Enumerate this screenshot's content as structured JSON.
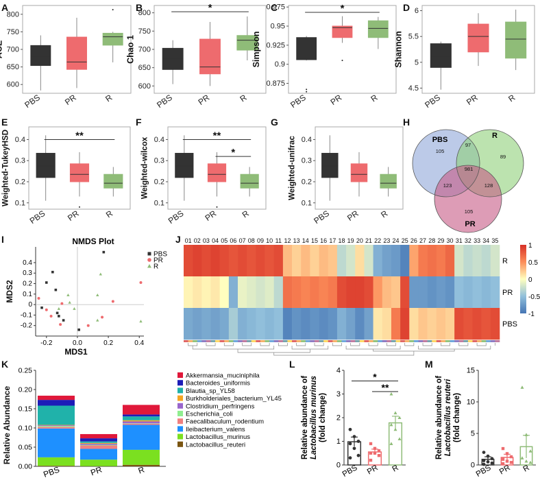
{
  "colors": {
    "pbs": "#333333",
    "pr": "#ee6b6e",
    "r": "#8fbc78",
    "axis": "#444444",
    "venn_pbs": "#8fa6d8",
    "venn_r": "#8fd07a",
    "venn_pr": "#c75a86"
  },
  "groups": [
    "PBS",
    "PR",
    "R"
  ],
  "chart_data": [
    {
      "panel": "A",
      "type": "box",
      "ylabel": "ACE",
      "ylim": [
        575,
        825
      ],
      "ticks": [
        600,
        650,
        700,
        750,
        800
      ],
      "categories": [
        "PBS",
        "PR",
        "R"
      ],
      "boxes": [
        {
          "min": 583,
          "q1": 654,
          "median": 681,
          "q3": 711,
          "max": 740
        },
        {
          "min": 590,
          "q1": 643,
          "median": 664,
          "q3": 735,
          "max": 790
        },
        {
          "min": 663,
          "q1": 712,
          "median": 736,
          "q3": 746,
          "max": 750
        }
      ],
      "outliers": [
        {
          "group": 2,
          "value": 813
        }
      ],
      "significance": []
    },
    {
      "panel": "B",
      "type": "box",
      "ylabel": "Chao 1",
      "ylim": [
        580,
        820
      ],
      "ticks": [
        600,
        650,
        700,
        750,
        800
      ],
      "categories": [
        "PBS",
        "PR",
        "R"
      ],
      "boxes": [
        {
          "min": 605,
          "q1": 645,
          "median": 675,
          "q3": 703,
          "max": 725
        },
        {
          "min": 600,
          "q1": 633,
          "median": 652,
          "q3": 728,
          "max": 775
        },
        {
          "min": 670,
          "q1": 698,
          "median": 725,
          "q3": 738,
          "max": 790
        }
      ],
      "outliers": [],
      "significance": [
        {
          "from": 0,
          "to": 2,
          "label": "*",
          "value": 803
        }
      ]
    },
    {
      "panel": "C",
      "type": "box",
      "ylabel": "Simpson",
      "ylim": [
        0.862,
        0.977
      ],
      "ticks": [
        0.875,
        0.9,
        0.925,
        0.95,
        0.975
      ],
      "categories": [
        "PBS",
        "PR",
        "R"
      ],
      "boxes": [
        {
          "min": 0.905,
          "q1": 0.906,
          "median": 0.92,
          "q3": 0.935,
          "max": 0.937
        },
        {
          "min": 0.928,
          "q1": 0.935,
          "median": 0.948,
          "q3": 0.95,
          "max": 0.963
        },
        {
          "min": 0.92,
          "q1": 0.935,
          "median": 0.947,
          "q3": 0.957,
          "max": 0.962
        }
      ],
      "outliers": [
        {
          "group": 0,
          "value": 0.864
        },
        {
          "group": 0,
          "value": 0.867
        },
        {
          "group": 1,
          "value": 0.905
        }
      ],
      "significance": [
        {
          "from": 0,
          "to": 2,
          "label": "*",
          "value": 0.968
        }
      ]
    },
    {
      "panel": "D",
      "type": "box",
      "ylabel": "Shannon",
      "ylim": [
        4.4,
        6.1
      ],
      "ticks": [
        4.5,
        5.0,
        5.5,
        6.0
      ],
      "categories": [
        "PBS",
        "PR",
        "R"
      ],
      "boxes": [
        {
          "min": 4.47,
          "q1": 4.9,
          "median": 5.12,
          "q3": 5.36,
          "max": 5.4
        },
        {
          "min": 4.93,
          "q1": 5.2,
          "median": 5.5,
          "q3": 5.74,
          "max": 5.95
        },
        {
          "min": 4.85,
          "q1": 5.08,
          "median": 5.45,
          "q3": 5.78,
          "max": 6.02
        }
      ],
      "outliers": [],
      "significance": []
    },
    {
      "panel": "E",
      "type": "box",
      "ylabel": "Weighted-TukeyHSD",
      "ylim": [
        0.07,
        0.46
      ],
      "ticks": [
        0.1,
        0.2,
        0.3,
        0.4
      ],
      "categories": [
        "PBS",
        "PR",
        "R"
      ],
      "boxes": [
        {
          "min": 0.11,
          "q1": 0.22,
          "median": 0.275,
          "q3": 0.335,
          "max": 0.42
        },
        {
          "min": 0.13,
          "q1": 0.2,
          "median": 0.235,
          "q3": 0.285,
          "max": 0.34
        },
        {
          "min": 0.13,
          "q1": 0.17,
          "median": 0.193,
          "q3": 0.235,
          "max": 0.27
        }
      ],
      "outliers": [
        {
          "group": 1,
          "value": 0.08
        }
      ],
      "significance": [
        {
          "from": 0,
          "to": 2,
          "label": "**",
          "value": 0.4
        }
      ]
    },
    {
      "panel": "F",
      "type": "box",
      "ylabel": "Weighted-wilcox",
      "ylim": [
        0.07,
        0.46
      ],
      "ticks": [
        0.1,
        0.2,
        0.3,
        0.4
      ],
      "categories": [
        "PBS",
        "PR",
        "R"
      ],
      "boxes": [
        {
          "min": 0.11,
          "q1": 0.22,
          "median": 0.275,
          "q3": 0.335,
          "max": 0.42
        },
        {
          "min": 0.13,
          "q1": 0.2,
          "median": 0.235,
          "q3": 0.285,
          "max": 0.34
        },
        {
          "min": 0.13,
          "q1": 0.17,
          "median": 0.193,
          "q3": 0.235,
          "max": 0.27
        }
      ],
      "outliers": [
        {
          "group": 1,
          "value": 0.08
        }
      ],
      "significance": [
        {
          "from": 0,
          "to": 2,
          "label": "**",
          "value": 0.4
        },
        {
          "from": 1,
          "to": 2,
          "label": "*",
          "value": 0.32
        }
      ]
    },
    {
      "panel": "G",
      "type": "box",
      "ylabel": "Weighted-unifrac",
      "ylim": [
        0.07,
        0.46
      ],
      "ticks": [
        0.1,
        0.2,
        0.3,
        0.4
      ],
      "categories": [
        "PBS",
        "PR",
        "R"
      ],
      "boxes": [
        {
          "min": 0.11,
          "q1": 0.22,
          "median": 0.275,
          "q3": 0.335,
          "max": 0.42
        },
        {
          "min": 0.13,
          "q1": 0.2,
          "median": 0.235,
          "q3": 0.285,
          "max": 0.34
        },
        {
          "min": 0.13,
          "q1": 0.17,
          "median": 0.193,
          "q3": 0.235,
          "max": 0.27
        }
      ],
      "outliers": [],
      "significance": []
    },
    {
      "panel": "H",
      "type": "venn",
      "sets": [
        "PBS",
        "R",
        "PR"
      ],
      "regions": {
        "PBS_only": "105",
        "PBS_R": "97",
        "R_only": "89",
        "all": "981",
        "PBS_PR": "123",
        "R_PR": "128",
        "PR_only": "105"
      }
    },
    {
      "panel": "I",
      "type": "scatter",
      "title": "NMDS Plot",
      "xlabel": "MDS1",
      "ylabel": "MDS2",
      "xlim": [
        -0.27,
        0.43
      ],
      "ylim": [
        -0.3,
        0.55
      ],
      "xticks": [
        -0.2,
        0.0,
        0.2,
        0.4
      ],
      "yticks": [
        -0.2,
        -0.1,
        0.0,
        0.1,
        0.2,
        0.3,
        0.4
      ],
      "legend": [
        "PBS",
        "PR",
        "R"
      ],
      "series": [
        {
          "name": "PBS",
          "points": [
            [
              -0.16,
              0.31
            ],
            [
              -0.2,
              0.21
            ],
            [
              -0.14,
              0.14
            ],
            [
              -0.23,
              -0.03
            ],
            [
              -0.13,
              -0.08
            ],
            [
              -0.12,
              -0.11
            ],
            [
              -0.09,
              -0.15
            ],
            [
              0.17,
              0.5
            ],
            [
              0.01,
              -0.24
            ]
          ]
        },
        {
          "name": "PR",
          "points": [
            [
              -0.25,
              0.06
            ],
            [
              -0.2,
              -0.05
            ],
            [
              -0.17,
              -0.11
            ],
            [
              -0.11,
              -0.19
            ],
            [
              0.07,
              -0.2
            ],
            [
              0.23,
              0.03
            ],
            [
              0.16,
              -0.12
            ],
            [
              -0.1,
              0.01
            ],
            [
              0.41,
              0.21
            ]
          ]
        },
        {
          "name": "R",
          "points": [
            [
              0.15,
              0.29
            ],
            [
              -0.12,
              -0.04
            ],
            [
              -0.06,
              0.09
            ],
            [
              -0.05,
              0.02
            ],
            [
              0.13,
              0.09
            ],
            [
              0.13,
              -0.15
            ],
            [
              0.41,
              -0.16
            ],
            [
              -0.02,
              -0.04
            ]
          ]
        }
      ]
    },
    {
      "panel": "J",
      "type": "heatmap",
      "rows": [
        "R",
        "PR",
        "PBS"
      ],
      "columns": [
        "01",
        "02",
        "03",
        "04",
        "05",
        "06",
        "07",
        "08",
        "09",
        "10",
        "11",
        "12",
        "13",
        "14",
        "15",
        "16",
        "17",
        "18",
        "19",
        "20",
        "21",
        "22",
        "23",
        "24",
        "25",
        "26",
        "27",
        "28",
        "29",
        "30",
        "31",
        "32",
        "33",
        "34",
        "35"
      ],
      "colorbar": {
        "ticks": [
          "1",
          "0.5",
          "0",
          "-0.5",
          "-1"
        ]
      },
      "values": [
        [
          0.85,
          0.9,
          0.85,
          0.9,
          0.85,
          0.8,
          0.85,
          0.8,
          0.85,
          0.8,
          0.85,
          0.3,
          0.2,
          0.3,
          0.2,
          0.3,
          0.25,
          -0.3,
          -0.2,
          0.15,
          -0.2,
          -0.6,
          -0.7,
          -0.75,
          -0.9,
          0.4,
          0.6,
          0.65,
          0.6,
          0.7,
          -0.2,
          -0.3,
          -0.25,
          -0.3,
          -0.2
        ],
        [
          0.05,
          0.1,
          0.05,
          0.1,
          0.0,
          -0.6,
          -0.1,
          -0.15,
          -0.2,
          -0.15,
          -0.3,
          0.65,
          0.6,
          0.55,
          0.6,
          0.55,
          0.6,
          0.85,
          0.9,
          0.9,
          0.85,
          0.45,
          0.3,
          0.25,
          0.85,
          -0.75,
          -0.75,
          -0.8,
          -0.75,
          -0.8,
          -0.5,
          -0.55,
          -0.5,
          -0.55,
          -0.5
        ],
        [
          -0.65,
          -0.7,
          -0.65,
          -0.7,
          -0.65,
          -0.4,
          -0.6,
          -0.55,
          -0.5,
          -0.55,
          -0.5,
          -0.9,
          -0.8,
          -0.85,
          -0.8,
          -0.85,
          -0.8,
          -0.6,
          -0.7,
          -0.85,
          -0.7,
          0.1,
          0.15,
          0.6,
          0.9,
          0.15,
          0.25,
          0.2,
          0.25,
          0.2,
          0.85,
          0.8,
          0.85,
          0.8,
          0.85
        ]
      ]
    },
    {
      "panel": "K",
      "type": "stacked_bar",
      "ylabel": "Relative Abundance",
      "ylim": [
        0,
        0.25
      ],
      "ticks": [
        0.0,
        0.05,
        0.1,
        0.15,
        0.2,
        0.25
      ],
      "categories": [
        "PBS",
        "PR",
        "R"
      ],
      "series": [
        {
          "name": "Lactobacillus_reuteri",
          "color": "#7a5510",
          "values": [
            0.0015,
            0.0005,
            0.004
          ]
        },
        {
          "name": "Lactobacillus_murinus",
          "color": "#7be020",
          "values": [
            0.022,
            0.017,
            0.039
          ]
        },
        {
          "name": "Ileibacterium_valens",
          "color": "#1e90ff",
          "values": [
            0.075,
            0.028,
            0.065
          ]
        },
        {
          "name": "Faecalibaculum_rodentium",
          "color": "#f08080",
          "values": [
            0.004,
            0.009,
            0.003
          ]
        },
        {
          "name": "Escherichia_coli",
          "color": "#90ee90",
          "values": [
            0.0025,
            0.0015,
            0.001
          ]
        },
        {
          "name": "Clostridium_perfringens",
          "color": "#9966cc",
          "values": [
            0.002,
            0.003,
            0.005
          ]
        },
        {
          "name": "Burkholderiales_bacterium_YL45",
          "color": "#f5a623",
          "values": [
            0.001,
            0.002,
            0.003
          ]
        },
        {
          "name": "Blautia_sp_YL58",
          "color": "#20b2aa",
          "values": [
            0.05,
            0.004,
            0.01
          ]
        },
        {
          "name": "Bacteroides_uniformis",
          "color": "#1c1cb8",
          "values": [
            0.015,
            0.008,
            0.005
          ]
        },
        {
          "name": "Akkermansia_muciniphila",
          "color": "#e0183a",
          "values": [
            0.011,
            0.011,
            0.025
          ]
        }
      ]
    },
    {
      "panel": "L",
      "type": "bar_dot",
      "ylabel_lines": [
        "Relative abundance of",
        "Lactobacillus murinus",
        "(fold change)"
      ],
      "ylim": [
        0,
        4
      ],
      "ticks": [
        0,
        1,
        2,
        3,
        4
      ],
      "categories": [
        "PBS",
        "PR",
        "R"
      ],
      "means": [
        0.98,
        0.55,
        1.78
      ],
      "sems": [
        0.2,
        0.12,
        0.28
      ],
      "points": [
        [
          1.5,
          1.2,
          1.0,
          0.9,
          0.7,
          0.4,
          0.3
        ],
        [
          0.9,
          0.7,
          0.6,
          0.5,
          0.5,
          0.4,
          0.2
        ],
        [
          3.0,
          2.2,
          2.0,
          1.7,
          1.5,
          1.1,
          0.9
        ]
      ],
      "significance": [
        {
          "from": 0,
          "to": 2,
          "label": "*",
          "value": 3.55
        },
        {
          "from": 1,
          "to": 2,
          "label": "**",
          "value": 3.1
        }
      ]
    },
    {
      "panel": "M",
      "type": "bar_dot",
      "ylabel_lines": [
        "Relative abundance of",
        "Lactobacillus reuteri",
        "(fold change)"
      ],
      "ylim": [
        0,
        15
      ],
      "ticks": [
        0,
        5,
        10,
        15
      ],
      "categories": [
        "PBS",
        "PR",
        "R"
      ],
      "means": [
        0.9,
        1.2,
        2.9
      ],
      "sems": [
        0.4,
        0.5,
        1.8
      ],
      "points": [
        [
          2.0,
          1.4,
          1.0,
          0.7,
          0.5,
          0.3,
          0.1
        ],
        [
          2.6,
          1.8,
          1.3,
          0.9,
          0.6,
          0.4,
          0.2
        ],
        [
          12.3,
          4.8,
          2.2,
          1.1,
          0.6,
          0.4
        ]
      ],
      "significance": []
    }
  ],
  "panel_letters": {
    "A": "A",
    "B": "B",
    "C": "C",
    "D": "D",
    "E": "E",
    "F": "F",
    "G": "G",
    "H": "H",
    "I": "I",
    "J": "J",
    "K": "K",
    "L": "L",
    "M": "M"
  }
}
